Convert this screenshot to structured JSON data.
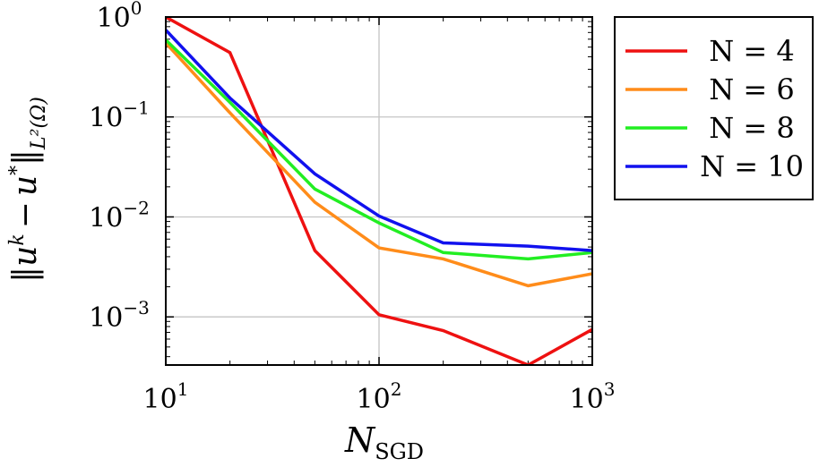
{
  "chart_data": {
    "type": "line",
    "xscale": "log",
    "yscale": "log",
    "x": [
      10,
      20,
      50,
      100,
      200,
      500,
      1000
    ],
    "xlim": [
      10,
      1000
    ],
    "ylim": [
      0.00033,
      1.0
    ],
    "grid": true,
    "legend_position": "outside-right",
    "xlabel": {
      "main": "N",
      "sub": "SGD"
    },
    "ylabel": "‖u^k − u*‖_{L²(Ω)}",
    "ylabel_parts": {
      "bar": "‖",
      "base": "u",
      "exp_k": "k",
      "minus": "−",
      "star": "*",
      "sub": "L²(Ω)"
    },
    "x_ticks": [
      {
        "value": 10,
        "base": "10",
        "exp": "1"
      },
      {
        "value": 100,
        "base": "10",
        "exp": "2"
      },
      {
        "value": 1000,
        "base": "10",
        "exp": "3"
      }
    ],
    "y_ticks": [
      {
        "value": 1,
        "base": "10",
        "exp": "0"
      },
      {
        "value": 0.1,
        "base": "10",
        "exp": "−1"
      },
      {
        "value": 0.01,
        "base": "10",
        "exp": "−2"
      },
      {
        "value": 0.001,
        "base": "10",
        "exp": "−3"
      }
    ],
    "series": [
      {
        "name": "N = 4",
        "color": "#ee1111",
        "values": [
          1.0,
          0.44,
          0.0046,
          0.00105,
          0.00073,
          0.00033,
          0.00075
        ]
      },
      {
        "name": "N = 6",
        "color": "#ff8c1a",
        "values": [
          0.55,
          0.11,
          0.014,
          0.0049,
          0.0038,
          0.00205,
          0.0027
        ]
      },
      {
        "name": "N = 8",
        "color": "#22ee22",
        "values": [
          0.59,
          0.14,
          0.019,
          0.0087,
          0.0044,
          0.0038,
          0.0044
        ]
      },
      {
        "name": "N = 10",
        "color": "#1111ee",
        "values": [
          0.74,
          0.155,
          0.027,
          0.0102,
          0.0055,
          0.0051,
          0.0046
        ]
      }
    ]
  }
}
